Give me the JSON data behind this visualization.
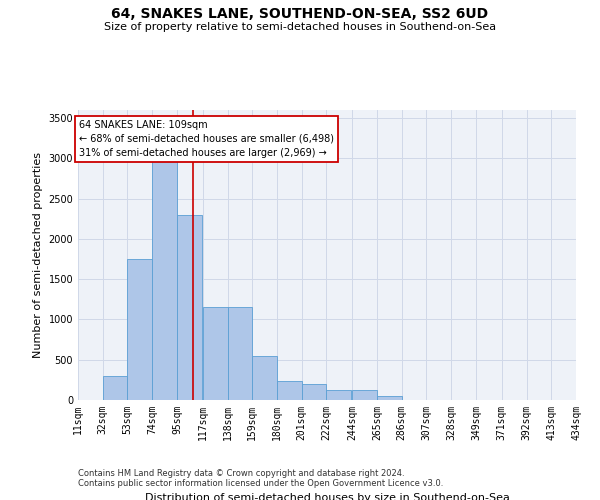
{
  "title": "64, SNAKES LANE, SOUTHEND-ON-SEA, SS2 6UD",
  "subtitle": "Size of property relative to semi-detached houses in Southend-on-Sea",
  "xlabel": "Distribution of semi-detached houses by size in Southend-on-Sea",
  "ylabel": "Number of semi-detached properties",
  "footer_line1": "Contains HM Land Registry data © Crown copyright and database right 2024.",
  "footer_line2": "Contains public sector information licensed under the Open Government Licence v3.0.",
  "annotation_line1": "64 SNAKES LANE: 109sqm",
  "annotation_line2": "← 68% of semi-detached houses are smaller (6,498)",
  "annotation_line3": "31% of semi-detached houses are larger (2,969) →",
  "bar_color": "#aec6e8",
  "bar_edge_color": "#5a9fd4",
  "grid_color": "#d0d8e8",
  "redline_color": "#cc0000",
  "property_size": 109,
  "bin_edges": [
    11,
    32,
    53,
    74,
    95,
    117,
    138,
    159,
    180,
    201,
    222,
    244,
    265,
    286,
    307,
    328,
    349,
    371,
    392,
    413,
    434
  ],
  "bin_labels": [
    "11sqm",
    "32sqm",
    "53sqm",
    "74sqm",
    "95sqm",
    "117sqm",
    "138sqm",
    "159sqm",
    "180sqm",
    "201sqm",
    "222sqm",
    "244sqm",
    "265sqm",
    "286sqm",
    "307sqm",
    "328sqm",
    "349sqm",
    "371sqm",
    "392sqm",
    "413sqm",
    "434sqm"
  ],
  "counts": [
    5,
    300,
    1750,
    3050,
    2300,
    1150,
    1150,
    550,
    230,
    200,
    120,
    120,
    50,
    0,
    0,
    0,
    0,
    0,
    0,
    0
  ],
  "ylim": [
    0,
    3600
  ],
  "yticks": [
    0,
    500,
    1000,
    1500,
    2000,
    2500,
    3000,
    3500
  ],
  "background_color": "#eef2f8",
  "title_fontsize": 10,
  "subtitle_fontsize": 8,
  "ylabel_fontsize": 8,
  "xlabel_fontsize": 8,
  "tick_fontsize": 7,
  "footer_fontsize": 6
}
